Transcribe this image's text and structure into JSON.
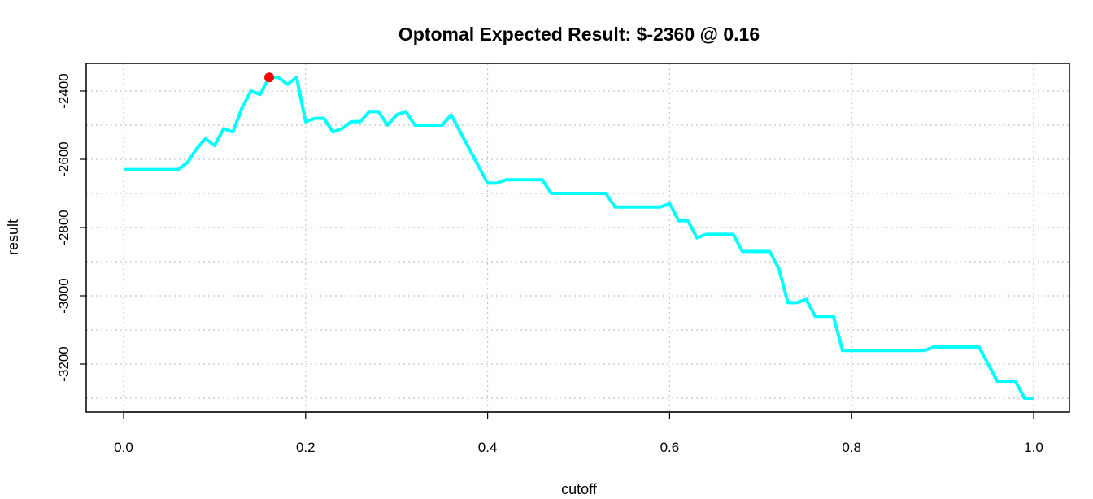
{
  "chart_data": {
    "type": "line",
    "title": "Optomal Expected Result: $-2360 @ 0.16",
    "xlabel": "cutoff",
    "ylabel": "result",
    "xlim": [
      0.0,
      1.0
    ],
    "ylim": [
      -3300,
      -2360
    ],
    "xticks": [
      0.0,
      0.2,
      0.4,
      0.6,
      0.8,
      1.0
    ],
    "xtick_labels": [
      "0.0",
      "0.2",
      "0.4",
      "0.6",
      "0.8",
      "1.0"
    ],
    "yticks": [
      -2400,
      -2600,
      -2800,
      -3000,
      -3200
    ],
    "ytick_labels": [
      "-2400",
      "-2600",
      "-2800",
      "-3000",
      "-3200"
    ],
    "grid": true,
    "series": [
      {
        "color": "#00FFFF",
        "x": [
          0.0,
          0.06,
          0.07,
          0.08,
          0.09,
          0.1,
          0.11,
          0.12,
          0.13,
          0.14,
          0.15,
          0.16,
          0.17,
          0.18,
          0.19,
          0.2,
          0.21,
          0.22,
          0.23,
          0.24,
          0.25,
          0.26,
          0.27,
          0.28,
          0.29,
          0.3,
          0.31,
          0.32,
          0.35,
          0.36,
          0.37,
          0.38,
          0.4,
          0.41,
          0.42,
          0.46,
          0.47,
          0.53,
          0.54,
          0.59,
          0.6,
          0.61,
          0.62,
          0.63,
          0.64,
          0.67,
          0.68,
          0.71,
          0.72,
          0.73,
          0.74,
          0.75,
          0.76,
          0.78,
          0.79,
          0.88,
          0.89,
          0.94,
          0.95,
          0.96,
          0.98,
          0.99,
          1.0
        ],
        "y": [
          -2630,
          -2630,
          -2610,
          -2570,
          -2540,
          -2560,
          -2510,
          -2520,
          -2450,
          -2400,
          -2410,
          -2360,
          -2360,
          -2380,
          -2360,
          -2490,
          -2480,
          -2480,
          -2520,
          -2510,
          -2490,
          -2490,
          -2460,
          -2460,
          -2500,
          -2470,
          -2460,
          -2500,
          -2500,
          -2470,
          -2520,
          -2570,
          -2670,
          -2670,
          -2660,
          -2660,
          -2700,
          -2700,
          -2740,
          -2740,
          -2730,
          -2780,
          -2780,
          -2830,
          -2820,
          -2820,
          -2870,
          -2870,
          -2920,
          -3020,
          -3020,
          -3010,
          -3060,
          -3060,
          -3160,
          -3160,
          -3150,
          -3150,
          -3200,
          -3250,
          -3250,
          -3300,
          -3300
        ]
      }
    ],
    "highlight_point": {
      "x": 0.16,
      "y": -2360,
      "color": "#FF0000"
    }
  }
}
